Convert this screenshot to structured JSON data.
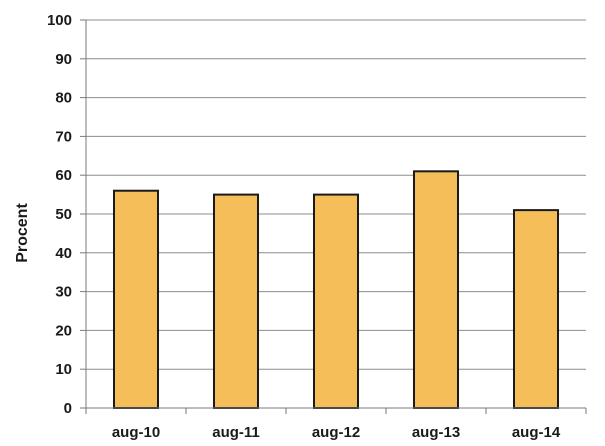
{
  "chart_data": {
    "type": "bar",
    "categories": [
      "aug-10",
      "aug-11",
      "aug-12",
      "aug-13",
      "aug-14"
    ],
    "values": [
      56,
      55,
      55,
      61,
      51
    ],
    "title": "",
    "xlabel": "",
    "ylabel": "Procent",
    "ylim": [
      0,
      100
    ],
    "yticks": [
      0,
      10,
      20,
      30,
      40,
      50,
      60,
      70,
      80,
      90,
      100
    ],
    "grid": true,
    "legend": "none",
    "colors": {
      "bar_fill": "#F5BE58",
      "bar_stroke": "#1a1a1a",
      "grid": "#8c8c8c",
      "axis": "#7a7a7a",
      "text": "#1a1a1a"
    }
  }
}
